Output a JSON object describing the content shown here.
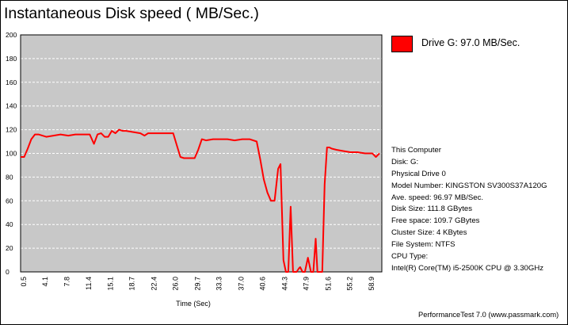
{
  "title": "Instantaneous Disk speed ( MB/Sec.)",
  "colors": {
    "series": "#ff0000",
    "plot_background": "#c8c8c8",
    "gridline": "#ffffff",
    "axis": "#000000"
  },
  "legend": {
    "label": "Drive G: 97.0 MB/Sec.",
    "placement": "top-right"
  },
  "info": [
    "This Computer",
    "Disk: G:",
    "Physical Drive 0",
    "Model Number: KINGSTON SV300S37A120G",
    "Ave. speed: 96.97 MB/Sec.",
    "Disk Size: 111.8 GBytes",
    "Free space: 109.7 GBytes",
    "Cluster Size: 4 KBytes",
    "File System: NTFS",
    "CPU Type:",
    "Intel(R) Core(TM) i5-2500K CPU @ 3.30GHz"
  ],
  "footer": "PerformanceTest 7.0 (www.passmark.com)",
  "chart_data": {
    "type": "line",
    "title": "Instantaneous Disk speed ( MB/Sec.)",
    "xlabel": "Time (Sec)",
    "ylabel": "",
    "xlim": [
      0,
      60.6
    ],
    "ylim": [
      0,
      200
    ],
    "grid": "horizontal dashed",
    "yticks": [
      0,
      20,
      40,
      60,
      80,
      100,
      120,
      140,
      160,
      180,
      200
    ],
    "xticks": [
      0.5,
      4.1,
      7.8,
      11.4,
      15.1,
      18.7,
      22.4,
      26.0,
      29.7,
      33.3,
      37.0,
      40.6,
      44.3,
      47.9,
      51.6,
      55.2,
      58.9
    ],
    "xtick_labels": [
      "0.5",
      "4.1",
      "7.8",
      "11.4",
      "15.1",
      "18.7",
      "22.4",
      "26.0",
      "29.7",
      "33.3",
      "37.0",
      "40.6",
      "44.3",
      "47.9",
      "51.6",
      "55.2",
      "58.9"
    ],
    "series": [
      {
        "name": "Drive G: 97.0 MB/Sec.",
        "x": [
          0.0,
          0.6,
          1.2,
          1.8,
          2.4,
          3.0,
          4.3,
          5.5,
          6.7,
          8.0,
          9.2,
          10.4,
          11.6,
          12.3,
          12.9,
          13.5,
          14.1,
          14.7,
          15.3,
          15.9,
          16.5,
          17.1,
          17.7,
          18.9,
          20.1,
          20.8,
          21.4,
          22.0,
          23.2,
          24.4,
          25.6,
          26.2,
          26.8,
          27.4,
          28.0,
          29.2,
          29.8,
          30.4,
          31.1,
          32.3,
          33.5,
          34.7,
          35.9,
          37.2,
          38.4,
          39.6,
          40.2,
          40.8,
          41.4,
          42.0,
          42.6,
          43.2,
          43.6,
          44.1,
          44.5,
          44.9,
          45.3,
          45.7,
          46.0,
          46.3,
          46.7,
          46.9,
          47.3,
          47.7,
          48.2,
          48.7,
          49.1,
          49.5,
          49.8,
          50.2,
          50.6,
          51.0,
          51.4,
          51.8,
          52.2,
          53.0,
          54.1,
          55.3,
          56.5,
          57.8,
          59.0,
          59.6,
          60.2
        ],
        "y": [
          97,
          97,
          104,
          112,
          116,
          116,
          114,
          115,
          116,
          115,
          116,
          116,
          116,
          108,
          116,
          117,
          114,
          114,
          119,
          117,
          120,
          119,
          119,
          118,
          117,
          115,
          117,
          117,
          117,
          117,
          117,
          107,
          97,
          96,
          96,
          96,
          103,
          112,
          111,
          112,
          112,
          112,
          111,
          112,
          112,
          110,
          95,
          78,
          67,
          60,
          60,
          87,
          91,
          10,
          0,
          0,
          55,
          0,
          0,
          0,
          3,
          4,
          0,
          0,
          12,
          0,
          0,
          28,
          0,
          0,
          0,
          74,
          105,
          105,
          104,
          103,
          102,
          101,
          101,
          100,
          100,
          97,
          100
        ]
      }
    ]
  }
}
